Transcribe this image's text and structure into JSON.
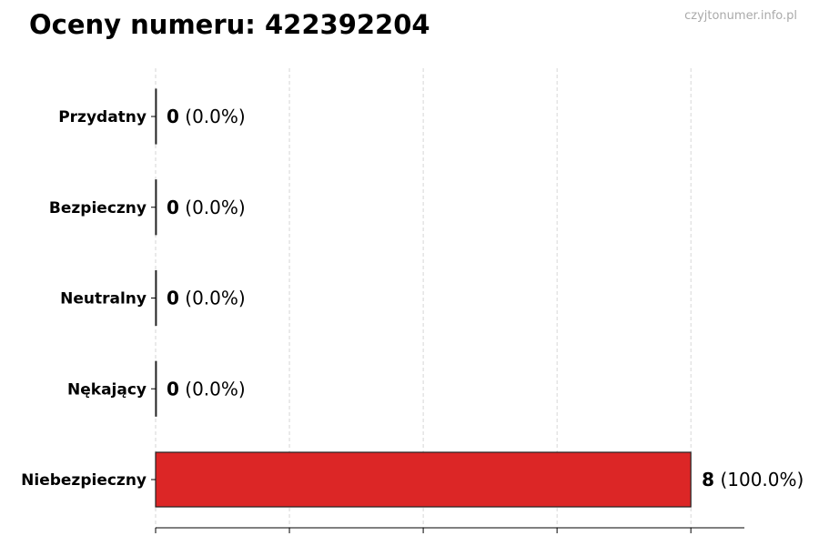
{
  "chart_data": {
    "type": "bar",
    "orientation": "horizontal",
    "title": "Oceny numeru: 422392204",
    "watermark": "czyjtonumer.info.pl",
    "categories": [
      "Przydatny",
      "Bezpieczny",
      "Neutralny",
      "Nękający",
      "Niebezpieczny"
    ],
    "values": [
      0,
      0,
      0,
      0,
      8
    ],
    "percent_labels": [
      "(0.0%)",
      "(0.0%)",
      "(0.0%)",
      "(0.0%)",
      "(100.0%)"
    ],
    "bar_colors": [
      "#dc2626",
      "#dc2626",
      "#dc2626",
      "#dc2626",
      "#dc2626"
    ],
    "xlim": [
      0,
      8.8
    ],
    "xticks": [
      0,
      2,
      4,
      6,
      8
    ],
    "xtick_labels_shown": false,
    "grid": "x, dashed",
    "xlabel": "",
    "ylabel": ""
  }
}
